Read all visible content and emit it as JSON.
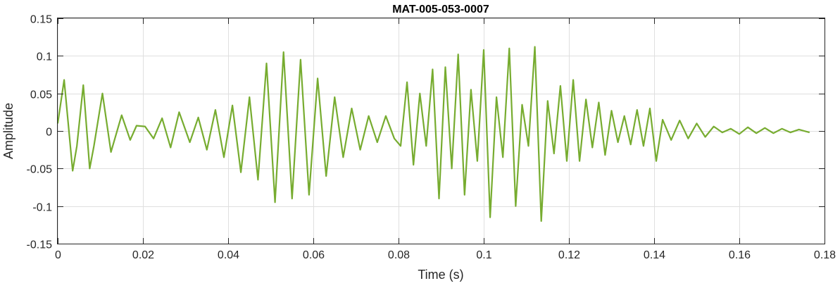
{
  "chart_data": {
    "type": "line",
    "title": "MAT-005-053-0007",
    "xlabel": "Time (s)",
    "ylabel": "Amplitude",
    "xlim": [
      0,
      0.18
    ],
    "ylim": [
      -0.15,
      0.15
    ],
    "grid": true,
    "x_ticks": [
      0,
      0.02,
      0.04,
      0.06,
      0.08,
      0.1,
      0.12,
      0.14,
      0.16,
      0.18
    ],
    "x_tick_labels": [
      "0",
      "0.02",
      "0.04",
      "0.06",
      "0.08",
      "0.1",
      "0.12",
      "0.14",
      "0.16",
      "0.18"
    ],
    "y_ticks": [
      -0.15,
      -0.1,
      -0.05,
      0,
      0.05,
      0.1,
      0.15
    ],
    "y_tick_labels": [
      "-0.15",
      "-0.1",
      "-0.05",
      "0",
      "0.05",
      "0.1",
      "0.15"
    ],
    "series": [
      {
        "color": "#77ac30",
        "x": [
          0,
          0.0015,
          0.0035,
          0.0045,
          0.006,
          0.0075,
          0.0085,
          0.0105,
          0.0125,
          0.015,
          0.017,
          0.0185,
          0.0205,
          0.0225,
          0.0245,
          0.0265,
          0.0285,
          0.031,
          0.033,
          0.035,
          0.037,
          0.039,
          0.041,
          0.043,
          0.045,
          0.047,
          0.049,
          0.051,
          0.053,
          0.055,
          0.057,
          0.059,
          0.061,
          0.063,
          0.065,
          0.067,
          0.069,
          0.071,
          0.073,
          0.075,
          0.077,
          0.079,
          0.0805,
          0.082,
          0.0835,
          0.085,
          0.0865,
          0.088,
          0.0895,
          0.091,
          0.0925,
          0.094,
          0.0955,
          0.097,
          0.0985,
          0.1,
          0.1015,
          0.103,
          0.1045,
          0.106,
          0.1075,
          0.109,
          0.1105,
          0.112,
          0.1135,
          0.115,
          0.1165,
          0.118,
          0.1195,
          0.121,
          0.1225,
          0.124,
          0.1255,
          0.127,
          0.1285,
          0.13,
          0.1315,
          0.133,
          0.1345,
          0.136,
          0.1375,
          0.139,
          0.1405,
          0.142,
          0.144,
          0.146,
          0.148,
          0.15,
          0.152,
          0.154,
          0.156,
          0.158,
          0.16,
          0.162,
          0.164,
          0.166,
          0.168,
          0.17,
          0.172,
          0.174,
          0.1765
        ],
        "y": [
          0.01,
          0.068,
          -0.053,
          -0.02,
          0.061,
          -0.05,
          -0.02,
          0.05,
          -0.028,
          0.021,
          -0.012,
          0.007,
          0.006,
          -0.01,
          0.017,
          -0.022,
          0.025,
          -0.015,
          0.018,
          -0.025,
          0.028,
          -0.035,
          0.034,
          -0.055,
          0.045,
          -0.065,
          0.09,
          -0.095,
          0.105,
          -0.09,
          0.095,
          -0.085,
          0.07,
          -0.06,
          0.045,
          -0.035,
          0.03,
          -0.025,
          0.02,
          -0.015,
          0.02,
          -0.01,
          -0.02,
          0.065,
          -0.045,
          0.05,
          -0.02,
          0.082,
          -0.09,
          0.085,
          -0.05,
          0.102,
          -0.085,
          0.055,
          -0.04,
          0.108,
          -0.115,
          0.045,
          -0.035,
          0.11,
          -0.1,
          0.035,
          -0.02,
          0.112,
          -0.12,
          0.04,
          -0.03,
          0.06,
          -0.04,
          0.068,
          -0.04,
          0.042,
          -0.022,
          0.038,
          -0.032,
          0.027,
          -0.015,
          0.02,
          -0.018,
          0.028,
          -0.02,
          0.03,
          -0.04,
          0.015,
          -0.012,
          0.014,
          -0.01,
          0.01,
          -0.008,
          0.006,
          -0.002,
          0.003,
          -0.004,
          0.005,
          -0.003,
          0.004,
          -0.003,
          0.003,
          -0.002,
          0.002,
          -0.002
        ]
      }
    ]
  }
}
